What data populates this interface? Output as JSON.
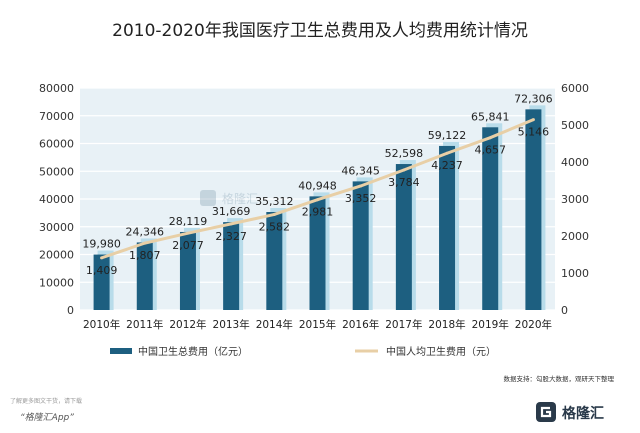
{
  "title": "2010-2020年我国医疗卫生总费用及人均费用统计情况",
  "source": "数据支持：勾股大数据，观研天下整理",
  "footer": {
    "note": "了解更多图文干货，请下载",
    "app": "“格隆汇App”"
  },
  "brand": {
    "name": "格隆汇",
    "watermark": "格隆汇"
  },
  "colors": {
    "bar": "#1d5f80",
    "bar_back": "#b8dcea",
    "line": "#e8cfa6",
    "plot_bg": "#e8f1f6",
    "grid": "#ffffff"
  },
  "chart_data": {
    "type": "bar",
    "title": "2010-2020年我国医疗卫生总费用及人均费用统计情况",
    "categories": [
      "2010年",
      "2011年",
      "2012年",
      "2013年",
      "2014年",
      "2015年",
      "2016年",
      "2017年",
      "2018年",
      "2019年",
      "2020年"
    ],
    "series": [
      {
        "name": "中国卫生总费用（亿元）",
        "type": "bar",
        "axis": "left",
        "values": [
          19980,
          24346,
          28119,
          31669,
          35312,
          40948,
          46345,
          52598,
          59122,
          65841,
          72306
        ],
        "labels": [
          "19,980",
          "24,346",
          "28,119",
          "31,669",
          "35,312",
          "40,948",
          "46,345",
          "52,598",
          "59,122",
          "65,841",
          "72,306"
        ]
      },
      {
        "name": "中国人均卫生费用（元）",
        "type": "line",
        "axis": "right",
        "values": [
          1409,
          1807,
          2077,
          2327,
          2582,
          2981,
          3352,
          3784,
          4237,
          4657,
          5146
        ],
        "labels": [
          "1,409",
          "1,807",
          "2,077",
          "2,327",
          "2,582",
          "2,981",
          "3,352",
          "3,784",
          "4,237",
          "4,657",
          "5,146"
        ]
      }
    ],
    "left_axis": {
      "min": 0,
      "max": 80000,
      "ticks": [
        "0",
        "10000",
        "20000",
        "30000",
        "40000",
        "50000",
        "60000",
        "70000",
        "80000"
      ]
    },
    "right_axis": {
      "min": 0,
      "max": 6000,
      "ticks": [
        "0",
        "1000",
        "2000",
        "3000",
        "4000",
        "5000",
        "6000"
      ]
    },
    "grid": true,
    "legend_position": "bottom"
  }
}
